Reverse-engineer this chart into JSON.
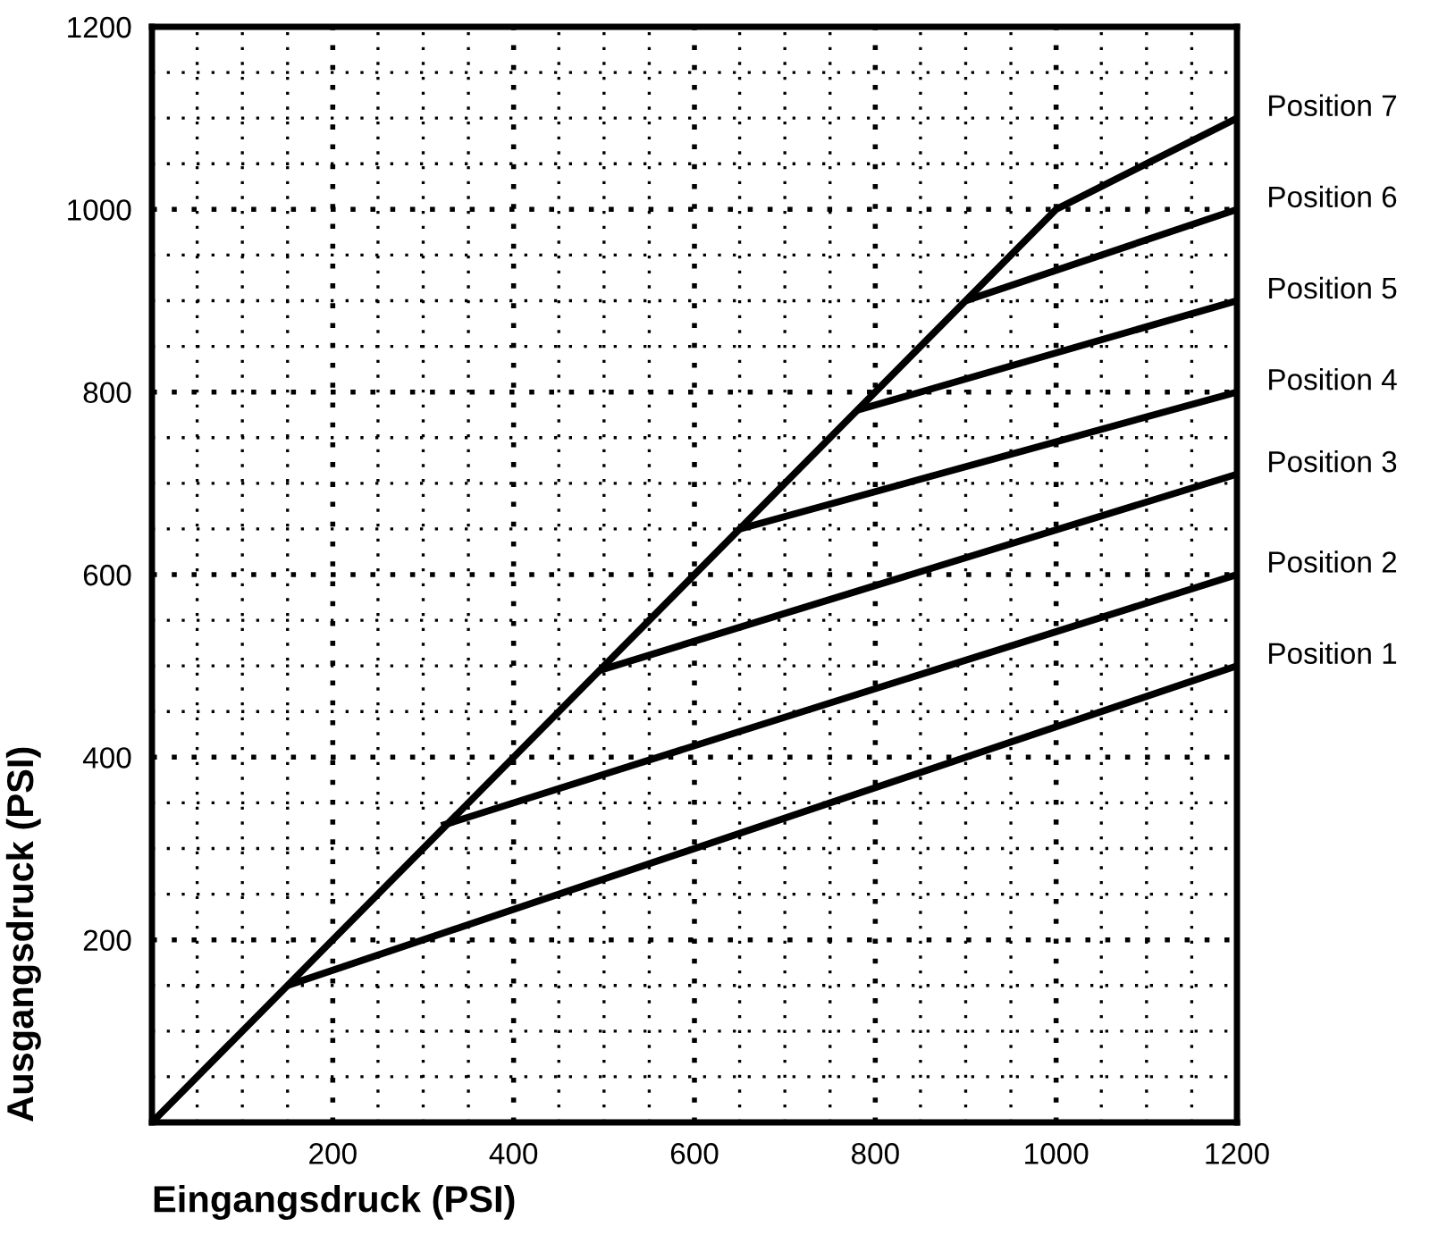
{
  "chart_data": {
    "type": "line",
    "xlabel": "Eingangsdruck (PSI)",
    "ylabel": "Ausgangsdruck (PSI)",
    "xlim": [
      0,
      1200
    ],
    "ylim": [
      0,
      1200
    ],
    "xticks": [
      200,
      400,
      600,
      800,
      1000,
      1200
    ],
    "yticks": [
      200,
      400,
      600,
      800,
      1000,
      1200
    ],
    "grid": true,
    "legend": false,
    "marker": "none",
    "line_style": "solid",
    "series": [
      {
        "name": "Position 1",
        "color": "#000000",
        "x": [
          150,
          1200
        ],
        "values": [
          150,
          500
        ]
      },
      {
        "name": "Position 2",
        "color": "#000000",
        "x": [
          320,
          1200
        ],
        "values": [
          325,
          600
        ]
      },
      {
        "name": "Position 3",
        "color": "#000000",
        "x": [
          495,
          1200
        ],
        "values": [
          495,
          710
        ]
      },
      {
        "name": "Position 4",
        "color": "#000000",
        "x": [
          650,
          1200
        ],
        "values": [
          650,
          800
        ]
      },
      {
        "name": "Position 5",
        "color": "#000000",
        "x": [
          780,
          1200
        ],
        "values": [
          780,
          900
        ]
      },
      {
        "name": "Position 6",
        "color": "#000000",
        "x": [
          900,
          1200
        ],
        "values": [
          900,
          1000
        ]
      },
      {
        "name": "Position 7",
        "color": "#000000",
        "x": [
          0,
          1000,
          1200
        ],
        "values": [
          0,
          1000,
          1100
        ]
      }
    ]
  }
}
